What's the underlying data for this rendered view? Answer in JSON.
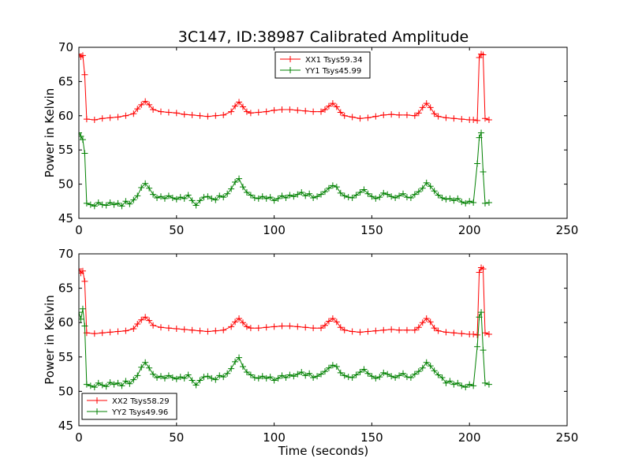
{
  "figure": {
    "title": "3C147, ID:38987 Calibrated Amplitude",
    "xlabel": "Time (seconds)"
  },
  "chart_data": [
    {
      "type": "line",
      "ylabel": "Power in Kelvin",
      "xlim": [
        0,
        250
      ],
      "ylim": [
        45,
        70
      ],
      "xticks": [
        0,
        50,
        100,
        150,
        200,
        250
      ],
      "yticks": [
        45,
        50,
        55,
        60,
        65,
        70
      ],
      "legend_position": "top-center",
      "grid": false,
      "series": [
        {
          "name": "XX1 Tsys59.34",
          "color": "#ff0000",
          "marker": "plus",
          "x": [
            0,
            1,
            2,
            3,
            4,
            8,
            12,
            16,
            20,
            24,
            28,
            30,
            32,
            34,
            36,
            38,
            42,
            46,
            50,
            54,
            58,
            62,
            66,
            70,
            74,
            78,
            80,
            82,
            84,
            86,
            88,
            92,
            96,
            100,
            104,
            108,
            112,
            116,
            120,
            124,
            126,
            128,
            130,
            132,
            134,
            136,
            140,
            144,
            148,
            152,
            156,
            160,
            164,
            168,
            172,
            174,
            176,
            178,
            180,
            182,
            184,
            188,
            192,
            196,
            200,
            202,
            204,
            205,
            206,
            207,
            208,
            210
          ],
          "values": [
            69,
            68.6,
            68.8,
            66,
            59.5,
            59.4,
            59.6,
            59.7,
            59.8,
            60.0,
            60.3,
            61.0,
            61.6,
            62.1,
            61.6,
            60.9,
            60.6,
            60.5,
            60.4,
            60.2,
            60.1,
            60.0,
            59.9,
            60.0,
            60.1,
            60.6,
            61.4,
            62.0,
            61.3,
            60.6,
            60.4,
            60.5,
            60.6,
            60.8,
            60.9,
            60.9,
            60.8,
            60.7,
            60.6,
            60.6,
            60.9,
            61.4,
            61.8,
            61.3,
            60.5,
            60.0,
            59.8,
            59.6,
            59.7,
            59.9,
            60.1,
            60.2,
            60.1,
            60.1,
            60.0,
            60.4,
            61.2,
            61.8,
            61.2,
            60.3,
            59.9,
            59.7,
            59.6,
            59.5,
            59.4,
            59.4,
            59.3,
            68.5,
            69,
            68.9,
            59.6,
            59.4
          ]
        },
        {
          "name": "YY1 Tsys45.99",
          "color": "#008000",
          "marker": "plus",
          "x": [
            0,
            1,
            2,
            3,
            4,
            6,
            8,
            10,
            12,
            14,
            16,
            18,
            20,
            22,
            24,
            26,
            28,
            30,
            32,
            34,
            36,
            38,
            40,
            42,
            44,
            46,
            48,
            50,
            52,
            54,
            56,
            58,
            60,
            62,
            64,
            66,
            68,
            70,
            72,
            74,
            76,
            78,
            80,
            82,
            84,
            86,
            88,
            90,
            92,
            94,
            96,
            98,
            100,
            102,
            104,
            106,
            108,
            110,
            112,
            114,
            116,
            118,
            120,
            122,
            124,
            126,
            128,
            130,
            132,
            134,
            136,
            138,
            140,
            142,
            144,
            146,
            148,
            150,
            152,
            154,
            156,
            158,
            160,
            162,
            164,
            166,
            168,
            170,
            172,
            174,
            176,
            178,
            180,
            182,
            184,
            186,
            188,
            190,
            192,
            194,
            196,
            198,
            200,
            202,
            204,
            205,
            206,
            207,
            208,
            210
          ],
          "values": [
            57.5,
            57.0,
            56.5,
            54.5,
            47.2,
            47.0,
            46.8,
            47.3,
            47.0,
            46.9,
            47.3,
            47.0,
            47.2,
            46.8,
            47.5,
            47.1,
            47.7,
            48.3,
            49.5,
            50.1,
            49.4,
            48.5,
            48.0,
            48.2,
            47.9,
            48.3,
            48.0,
            47.8,
            48.1,
            47.9,
            48.4,
            47.6,
            46.9,
            47.6,
            48.1,
            48.2,
            47.9,
            47.7,
            48.3,
            48.1,
            48.6,
            49.3,
            50.3,
            50.8,
            49.6,
            48.8,
            48.4,
            48.0,
            47.9,
            48.2,
            47.9,
            48.1,
            47.6,
            47.9,
            48.3,
            48.0,
            48.4,
            48.2,
            48.5,
            48.8,
            48.3,
            48.6,
            48.0,
            48.2,
            48.5,
            48.9,
            49.4,
            49.8,
            49.6,
            48.7,
            48.3,
            48.1,
            48.0,
            48.4,
            48.8,
            49.2,
            48.6,
            48.2,
            47.9,
            48.1,
            48.7,
            48.5,
            48.2,
            48.0,
            48.3,
            48.6,
            48.1,
            48.0,
            48.5,
            48.9,
            49.4,
            50.2,
            49.7,
            49.0,
            48.4,
            48.0,
            47.8,
            47.9,
            47.6,
            47.9,
            47.4,
            47.2,
            47.5,
            47.3,
            53,
            56.8,
            57.5,
            51.8,
            47.2,
            47.3
          ]
        }
      ]
    },
    {
      "type": "line",
      "ylabel": "Power in Kelvin",
      "xlabel": "Time (seconds)",
      "xlim": [
        0,
        250
      ],
      "ylim": [
        45,
        70
      ],
      "xticks": [
        0,
        50,
        100,
        150,
        200,
        250
      ],
      "yticks": [
        45,
        50,
        55,
        60,
        65,
        70
      ],
      "legend_position": "bottom-left",
      "grid": false,
      "series": [
        {
          "name": "XX2 Tsys58.29",
          "color": "#ff0000",
          "marker": "plus",
          "x": [
            0,
            1,
            2,
            3,
            4,
            8,
            12,
            16,
            20,
            24,
            28,
            30,
            32,
            34,
            36,
            38,
            42,
            46,
            50,
            54,
            58,
            62,
            66,
            70,
            74,
            78,
            80,
            82,
            84,
            86,
            88,
            92,
            96,
            100,
            104,
            108,
            112,
            116,
            120,
            124,
            126,
            128,
            130,
            132,
            134,
            136,
            140,
            144,
            148,
            152,
            156,
            160,
            164,
            168,
            172,
            174,
            176,
            178,
            180,
            182,
            184,
            188,
            192,
            196,
            200,
            202,
            204,
            205,
            206,
            207,
            208,
            210
          ],
          "values": [
            67.8,
            67.2,
            67.5,
            66.0,
            58.5,
            58.4,
            58.5,
            58.6,
            58.7,
            58.8,
            59.1,
            59.8,
            60.4,
            60.8,
            60.3,
            59.6,
            59.3,
            59.2,
            59.1,
            59.0,
            58.9,
            58.8,
            58.7,
            58.8,
            58.9,
            59.4,
            60.1,
            60.6,
            60.0,
            59.4,
            59.2,
            59.2,
            59.3,
            59.4,
            59.5,
            59.5,
            59.4,
            59.3,
            59.2,
            59.2,
            59.6,
            60.2,
            60.6,
            60.1,
            59.3,
            58.9,
            58.7,
            58.6,
            58.7,
            58.8,
            58.9,
            59.0,
            58.9,
            58.9,
            58.9,
            59.3,
            60.0,
            60.6,
            60.1,
            59.2,
            58.8,
            58.6,
            58.5,
            58.4,
            58.3,
            58.3,
            58.2,
            67.3,
            68.0,
            67.8,
            58.5,
            58.3
          ]
        },
        {
          "name": "YY2 Tsys49.96",
          "color": "#008000",
          "marker": "plus",
          "x": [
            0,
            1,
            2,
            3,
            4,
            6,
            8,
            10,
            12,
            14,
            16,
            18,
            20,
            22,
            24,
            26,
            28,
            30,
            32,
            34,
            36,
            38,
            40,
            42,
            44,
            46,
            48,
            50,
            52,
            54,
            56,
            58,
            60,
            62,
            64,
            66,
            68,
            70,
            72,
            74,
            76,
            78,
            80,
            82,
            84,
            86,
            88,
            90,
            92,
            94,
            96,
            98,
            100,
            102,
            104,
            106,
            108,
            110,
            112,
            114,
            116,
            118,
            120,
            122,
            124,
            126,
            128,
            130,
            132,
            134,
            136,
            138,
            140,
            142,
            144,
            146,
            148,
            150,
            152,
            154,
            156,
            158,
            160,
            162,
            164,
            166,
            168,
            170,
            172,
            174,
            176,
            178,
            180,
            182,
            184,
            186,
            188,
            190,
            192,
            194,
            196,
            198,
            200,
            202,
            204,
            205,
            206,
            207,
            208,
            210
          ],
          "values": [
            61.5,
            60.5,
            62.0,
            59.5,
            51.0,
            50.8,
            50.6,
            51.2,
            50.9,
            50.7,
            51.3,
            51.0,
            51.2,
            50.8,
            51.5,
            51.1,
            51.7,
            52.3,
            53.5,
            54.2,
            53.4,
            52.5,
            52.0,
            52.2,
            51.9,
            52.3,
            52.0,
            51.8,
            52.1,
            51.9,
            52.4,
            51.6,
            50.9,
            51.6,
            52.1,
            52.2,
            51.9,
            51.7,
            52.3,
            52.1,
            52.6,
            53.3,
            54.3,
            54.9,
            53.6,
            52.8,
            52.4,
            52.0,
            51.9,
            52.2,
            51.9,
            52.1,
            51.6,
            51.9,
            52.3,
            52.0,
            52.4,
            52.2,
            52.5,
            52.8,
            52.3,
            52.6,
            52.0,
            52.2,
            52.5,
            52.9,
            53.4,
            53.8,
            53.6,
            52.7,
            52.3,
            52.1,
            52.0,
            52.4,
            52.8,
            53.2,
            52.6,
            52.2,
            51.9,
            52.1,
            52.7,
            52.5,
            52.2,
            52.0,
            52.3,
            52.6,
            52.1,
            52.0,
            52.5,
            52.9,
            53.4,
            54.2,
            53.7,
            53.0,
            52.4,
            52.0,
            51.2,
            51.5,
            51.0,
            51.2,
            50.8,
            50.6,
            51.0,
            50.8,
            56.5,
            60.8,
            61.5,
            56.0,
            51.2,
            51.0
          ]
        }
      ]
    }
  ]
}
